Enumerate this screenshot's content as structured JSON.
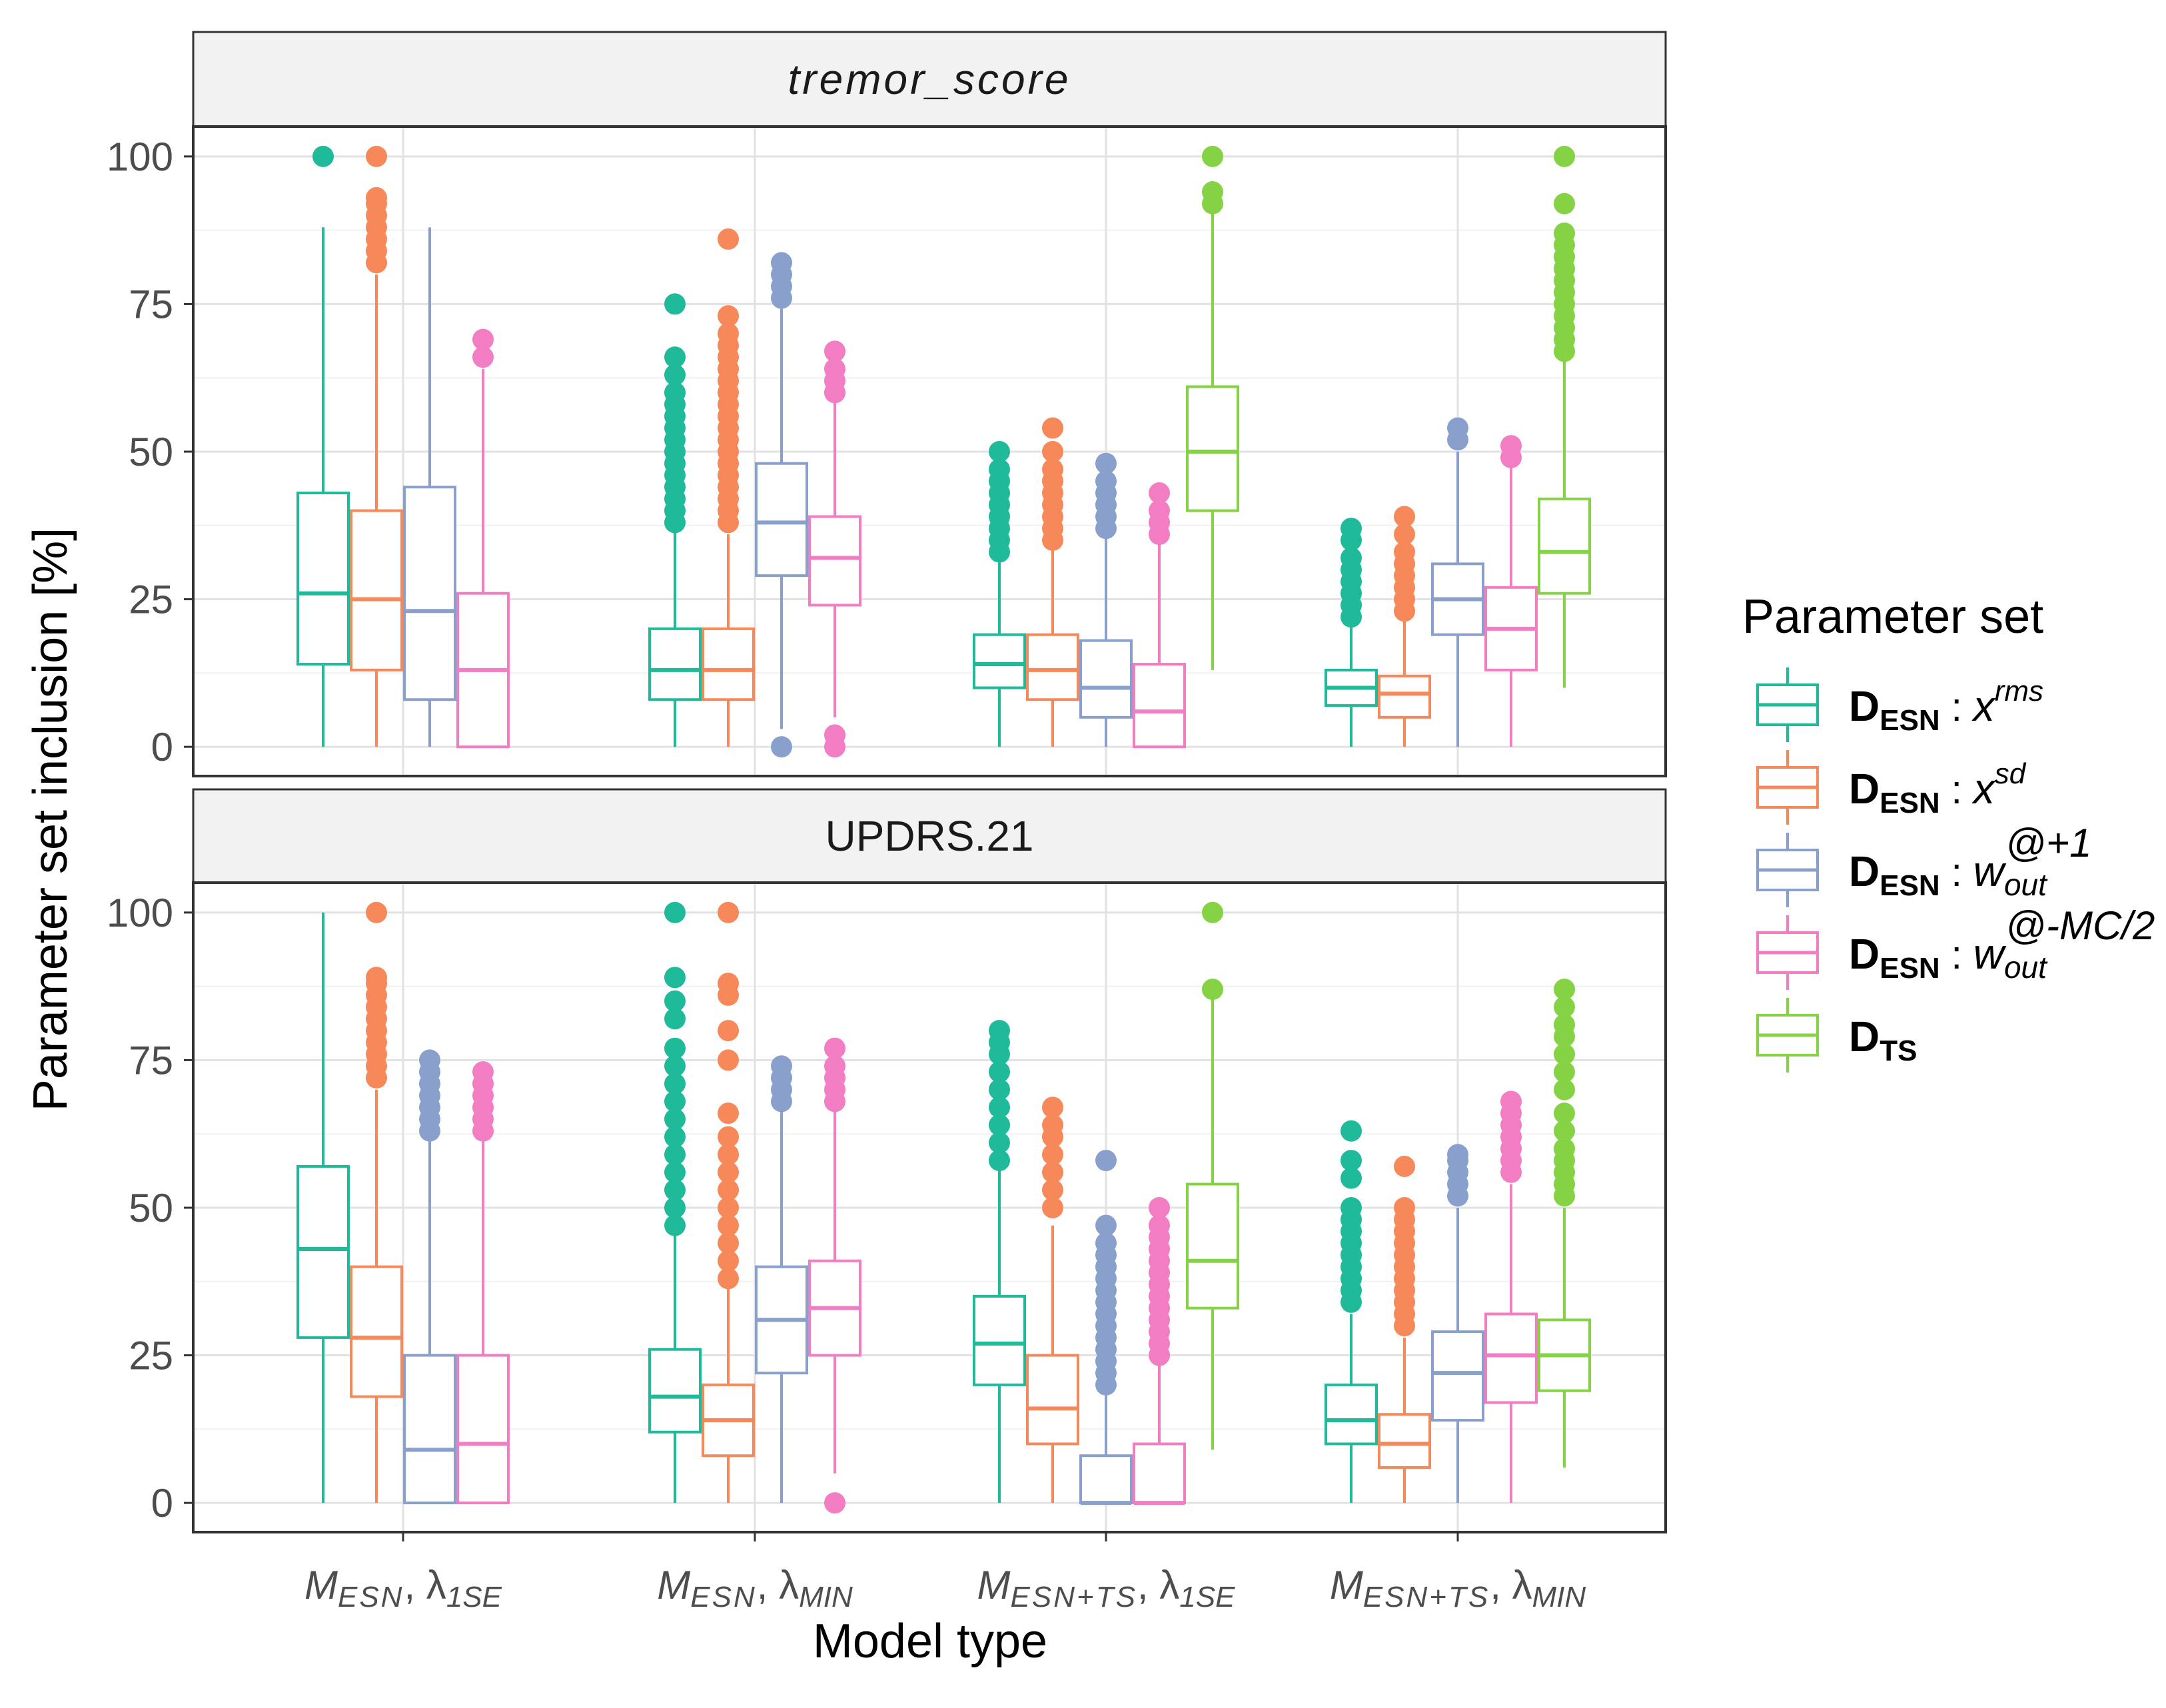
{
  "chart_data": {
    "type": "boxplot",
    "xlabel": "Model type",
    "ylabel": "Parameter set inclusion [%]",
    "ylim": [
      0,
      100
    ],
    "yticks": [
      0,
      25,
      50,
      75,
      100
    ],
    "grid": "on",
    "legend": {
      "title": "Parameter set",
      "placement": "right",
      "entries": [
        {
          "key": "xrms",
          "base": "D",
          "sub": "ESN",
          "sep": " : ",
          "var": "x",
          "varsub": "",
          "sup": "rms",
          "color": "#1fba9a"
        },
        {
          "key": "xsd",
          "base": "D",
          "sub": "ESN",
          "sep": " : ",
          "var": "x",
          "varsub": "",
          "sup": "sd",
          "color": "#f6885a"
        },
        {
          "key": "wout1",
          "base": "D",
          "sub": "ESN",
          "sep": " : ",
          "var": "w",
          "varsub": "out",
          "sup": "@+1",
          "color": "#8aa0cc"
        },
        {
          "key": "woutmc",
          "base": "D",
          "sub": "ESN",
          "sep": " : ",
          "var": "w",
          "varsub": "out",
          "sup": "@-MC/2",
          "color": "#f37dc3"
        },
        {
          "key": "dts",
          "base": "D",
          "sub": "TS",
          "sep": "",
          "var": "",
          "varsub": "",
          "sup": "",
          "color": "#86d245"
        }
      ]
    },
    "categories": [
      {
        "main": "M",
        "sub": "ESN",
        "lam": "λ",
        "lamsub": "1SE"
      },
      {
        "main": "M",
        "sub": "ESN",
        "lam": "λ",
        "lamsub": "MIN"
      },
      {
        "main": "M",
        "sub": "ESN+TS",
        "lam": "λ",
        "lamsub": "1SE"
      },
      {
        "main": "M",
        "sub": "ESN+TS",
        "lam": "λ",
        "lamsub": "MIN"
      }
    ],
    "panels": [
      {
        "label": "tremor_score",
        "label_italic": true,
        "groups": [
          [
            {
              "series": "xrms",
              "whislo": 0,
              "q1": 14,
              "median": 26,
              "q3": 43,
              "whishi": 88,
              "outliers": [
                100
              ]
            },
            {
              "series": "xsd",
              "whislo": 0,
              "q1": 13,
              "median": 25,
              "q3": 40,
              "whishi": 80,
              "outliers": [
                82,
                84,
                86,
                88,
                90,
                92,
                93,
                100
              ]
            },
            {
              "series": "wout1",
              "whislo": 0,
              "q1": 8,
              "median": 23,
              "q3": 44,
              "whishi": 88,
              "outliers": []
            },
            {
              "series": "woutmc",
              "whislo": 0,
              "q1": 0,
              "median": 13,
              "q3": 26,
              "whishi": 64,
              "outliers": [
                66,
                69
              ]
            }
          ],
          [
            {
              "series": "xrms",
              "whislo": 0,
              "q1": 8,
              "median": 13,
              "q3": 20,
              "whishi": 37,
              "outliers": [
                38,
                40,
                42,
                44,
                46,
                48,
                50,
                52,
                54,
                56,
                58,
                60,
                63,
                66,
                75
              ]
            },
            {
              "series": "xsd",
              "whislo": 0,
              "q1": 8,
              "median": 13,
              "q3": 20,
              "whishi": 36,
              "outliers": [
                38,
                40,
                42,
                44,
                46,
                48,
                50,
                52,
                54,
                56,
                58,
                60,
                62,
                64,
                66,
                68,
                70,
                73,
                86
              ]
            },
            {
              "series": "wout1",
              "whislo": 3,
              "q1": 29,
              "median": 38,
              "q3": 48,
              "whishi": 75,
              "outliers": [
                0,
                76,
                78,
                80,
                82
              ]
            },
            {
              "series": "woutmc",
              "whislo": 5,
              "q1": 24,
              "median": 32,
              "q3": 39,
              "whishi": 59,
              "outliers": [
                0,
                2,
                60,
                62,
                64,
                67
              ]
            }
          ],
          [
            {
              "series": "xrms",
              "whislo": 0,
              "q1": 10,
              "median": 14,
              "q3": 19,
              "whishi": 32,
              "outliers": [
                33,
                35,
                37,
                39,
                41,
                43,
                45,
                47,
                50
              ]
            },
            {
              "series": "xsd",
              "whislo": 0,
              "q1": 8,
              "median": 13,
              "q3": 19,
              "whishi": 34,
              "outliers": [
                35,
                37,
                39,
                41,
                43,
                45,
                47,
                50,
                54
              ]
            },
            {
              "series": "wout1",
              "whislo": 0,
              "q1": 5,
              "median": 10,
              "q3": 18,
              "whishi": 36,
              "outliers": [
                37,
                39,
                41,
                43,
                45,
                48
              ]
            },
            {
              "series": "woutmc",
              "whislo": 0,
              "q1": 0,
              "median": 6,
              "q3": 14,
              "whishi": 35,
              "outliers": [
                36,
                38,
                40,
                43
              ]
            }
          ],
          [
            {
              "series": "xrms",
              "whislo": 0,
              "q1": 7,
              "median": 10,
              "q3": 13,
              "whishi": 21,
              "outliers": [
                22,
                24,
                26,
                28,
                30,
                32,
                35,
                37
              ]
            },
            {
              "series": "xsd",
              "whislo": 0,
              "q1": 5,
              "median": 9,
              "q3": 12,
              "whishi": 22,
              "outliers": [
                23,
                25,
                27,
                29,
                31,
                33,
                36,
                39
              ]
            },
            {
              "series": "wout1",
              "whislo": 0,
              "q1": 19,
              "median": 25,
              "q3": 31,
              "whishi": 50,
              "outliers": [
                52,
                54
              ]
            },
            {
              "series": "woutmc",
              "whislo": 0,
              "q1": 13,
              "median": 20,
              "q3": 27,
              "whishi": 48,
              "outliers": [
                49,
                51
              ]
            }
          ],
          null
        ],
        "dts": [
          null,
          null,
          {
            "series": "dts",
            "whislo": 13,
            "q1": 40,
            "median": 50,
            "q3": 61,
            "whishi": 91,
            "outliers": [
              92,
              94,
              100
            ]
          },
          {
            "series": "dts",
            "whislo": 10,
            "q1": 26,
            "median": 33,
            "q3": 42,
            "whishi": 66,
            "outliers": [
              67,
              69,
              71,
              73,
              75,
              77,
              79,
              81,
              83,
              85,
              87,
              92,
              100
            ]
          }
        ]
      },
      {
        "label": "UPDRS.21",
        "label_italic": false,
        "groups": [
          [
            {
              "series": "xrms",
              "whislo": 0,
              "q1": 28,
              "median": 43,
              "q3": 57,
              "whishi": 100,
              "outliers": []
            },
            {
              "series": "xsd",
              "whislo": 0,
              "q1": 18,
              "median": 28,
              "q3": 40,
              "whishi": 70,
              "outliers": [
                72,
                74,
                76,
                78,
                80,
                82,
                84,
                86,
                88,
                89,
                100
              ]
            },
            {
              "series": "wout1",
              "whislo": 0,
              "q1": 0,
              "median": 9,
              "q3": 25,
              "whishi": 62,
              "outliers": [
                63,
                65,
                67,
                69,
                71,
                73,
                75
              ]
            },
            {
              "series": "woutmc",
              "whislo": 0,
              "q1": 0,
              "median": 10,
              "q3": 25,
              "whishi": 62,
              "outliers": [
                63,
                65,
                67,
                69,
                71,
                73
              ]
            }
          ],
          [
            {
              "series": "xrms",
              "whislo": 0,
              "q1": 12,
              "median": 18,
              "q3": 26,
              "whishi": 46,
              "outliers": [
                47,
                50,
                53,
                56,
                59,
                62,
                65,
                68,
                71,
                74,
                77,
                82,
                85,
                89,
                100
              ]
            },
            {
              "series": "xsd",
              "whislo": 0,
              "q1": 8,
              "median": 14,
              "q3": 20,
              "whishi": 37,
              "outliers": [
                38,
                41,
                44,
                47,
                50,
                53,
                56,
                59,
                62,
                66,
                75,
                80,
                86,
                88,
                100
              ]
            },
            {
              "series": "wout1",
              "whislo": 0,
              "q1": 22,
              "median": 31,
              "q3": 40,
              "whishi": 67,
              "outliers": [
                68,
                70,
                72,
                74
              ]
            },
            {
              "series": "woutmc",
              "whislo": 5,
              "q1": 25,
              "median": 33,
              "q3": 41,
              "whishi": 67,
              "outliers": [
                0,
                68,
                70,
                72,
                74,
                77
              ]
            }
          ],
          [
            {
              "series": "xrms",
              "whislo": 0,
              "q1": 20,
              "median": 27,
              "q3": 35,
              "whishi": 57,
              "outliers": [
                58,
                61,
                64,
                67,
                70,
                73,
                76,
                78,
                80
              ]
            },
            {
              "series": "xsd",
              "whislo": 0,
              "q1": 10,
              "median": 16,
              "q3": 25,
              "whishi": 47,
              "outliers": [
                50,
                53,
                56,
                59,
                62,
                64,
                67
              ]
            },
            {
              "series": "wout1",
              "whislo": 0,
              "q1": 0,
              "median": 0,
              "q3": 8,
              "whishi": 19,
              "outliers": [
                20,
                22,
                24,
                26,
                28,
                30,
                32,
                34,
                36,
                38,
                40,
                42,
                44,
                47,
                58
              ]
            },
            {
              "series": "woutmc",
              "whislo": 0,
              "q1": 0,
              "median": 0,
              "q3": 10,
              "whishi": 24,
              "outliers": [
                25,
                27,
                29,
                31,
                33,
                35,
                37,
                39,
                41,
                43,
                45,
                47,
                50
              ]
            }
          ],
          [
            {
              "series": "xrms",
              "whislo": 0,
              "q1": 10,
              "median": 14,
              "q3": 20,
              "whishi": 32,
              "outliers": [
                34,
                36,
                38,
                40,
                42,
                44,
                46,
                48,
                50,
                55,
                58,
                63
              ]
            },
            {
              "series": "xsd",
              "whislo": 0,
              "q1": 6,
              "median": 10,
              "q3": 15,
              "whishi": 28,
              "outliers": [
                30,
                32,
                34,
                36,
                38,
                40,
                42,
                44,
                46,
                48,
                50,
                57
              ]
            },
            {
              "series": "wout1",
              "whislo": 0,
              "q1": 14,
              "median": 22,
              "q3": 29,
              "whishi": 50,
              "outliers": [
                52,
                54,
                56,
                58,
                59
              ]
            },
            {
              "series": "woutmc",
              "whislo": 0,
              "q1": 17,
              "median": 25,
              "q3": 32,
              "whishi": 54,
              "outliers": [
                56,
                58,
                60,
                62,
                64,
                66,
                68
              ]
            }
          ],
          null
        ],
        "dts": [
          null,
          null,
          {
            "series": "dts",
            "whislo": 9,
            "q1": 33,
            "median": 41,
            "q3": 54,
            "whishi": 86,
            "outliers": [
              87,
              100
            ]
          },
          {
            "series": "dts",
            "whislo": 6,
            "q1": 19,
            "median": 25,
            "q3": 31,
            "whishi": 50,
            "outliers": [
              52,
              54,
              56,
              58,
              60,
              63,
              66,
              70,
              73,
              76,
              79,
              81,
              84,
              87
            ]
          }
        ]
      }
    ]
  }
}
